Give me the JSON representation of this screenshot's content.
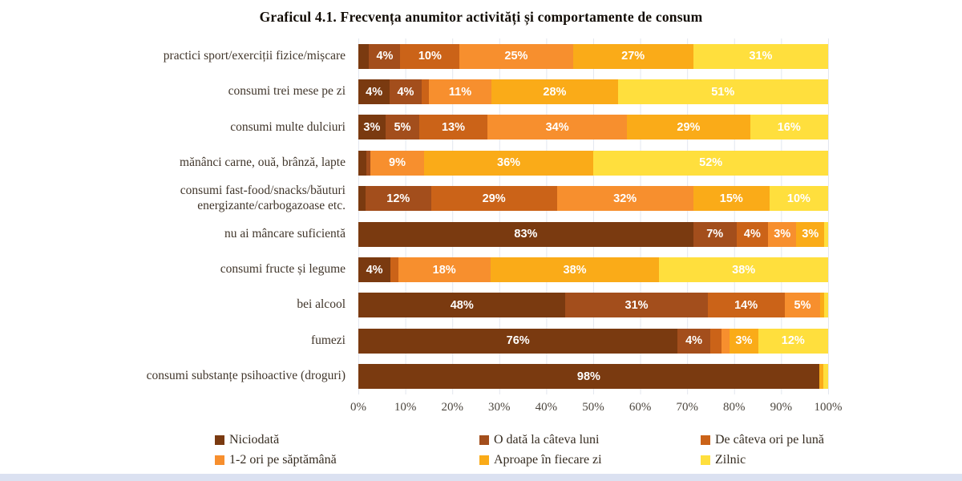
{
  "title": "Graficul 4.1. Frecvența anumitor activități și comportamente de consum",
  "chart_data": {
    "type": "bar",
    "orientation": "horizontal",
    "stacked": true,
    "unit": "%",
    "xlim": [
      0,
      100
    ],
    "grid": true,
    "legend_position": "bottom",
    "x_ticks": [
      "0%",
      "10%",
      "20%",
      "30%",
      "40%",
      "50%",
      "60%",
      "70%",
      "80%",
      "90%",
      "100%"
    ],
    "series": [
      {
        "name": "Niciodată",
        "color": "#7a3a10"
      },
      {
        "name": "O dată la câteva luni",
        "color": "#a34e1c"
      },
      {
        "name": "De câteva ori pe lună",
        "color": "#cb6318"
      },
      {
        "name": "1-2 ori pe săptămână",
        "color": "#f78f2e"
      },
      {
        "name": "Aproape în fiecare zi",
        "color": "#faab18"
      },
      {
        "name": "Zilnic",
        "color": "#ffdf3d"
      }
    ],
    "categories": [
      "practici sport/exerciții fizice/mișcare",
      "consumi trei mese pe zi",
      "consumi multe dulciuri",
      "mănânci carne, ouă, brânză, lapte",
      "consumi fast-food/snacks/băuturi energizante/carbogazoase etc.",
      "nu ai mâncare suficientă",
      "consumi fructe și legume",
      "bei alcool",
      "fumezi",
      "consumi substanțe psihoactive (droguri)"
    ],
    "rows": [
      {
        "category": "practici sport/exerciții fizice/mișcare",
        "values": [
          3,
          4,
          10,
          25,
          27,
          31
        ],
        "labels": [
          "",
          "4%",
          "10%",
          "25%",
          "27%",
          "31%"
        ]
      },
      {
        "category": "consumi trei mese pe zi",
        "values": [
          4,
          4,
          2,
          11,
          28,
          51
        ],
        "labels": [
          "4%",
          "4%",
          "",
          "11%",
          "28%",
          "51%"
        ]
      },
      {
        "category": "consumi multe dulciuri",
        "values": [
          3,
          5,
          13,
          34,
          29,
          16
        ],
        "labels": [
          "3%",
          "5%",
          "13%",
          "34%",
          "29%",
          "16%"
        ]
      },
      {
        "category": "mănânci carne, ouă, brânză, lapte",
        "values": [
          2,
          1,
          0,
          9,
          36,
          52
        ],
        "labels": [
          "",
          "",
          "",
          "9%",
          "36%",
          "52%"
        ]
      },
      {
        "category": "consumi fast-food/snacks/băuturi energizante/carbogazoase etc.",
        "values": [
          2,
          12,
          29,
          32,
          15,
          10
        ],
        "labels": [
          "",
          "12%",
          "29%",
          "32%",
          "15%",
          "10%"
        ]
      },
      {
        "category": "nu ai mâncare suficientă",
        "values": [
          83,
          7,
          4,
          3,
          3,
          1
        ],
        "labels": [
          "83%",
          "7%",
          "4%",
          "3%",
          "3%",
          ""
        ]
      },
      {
        "category": "consumi fructe și legume",
        "values": [
          4,
          0,
          2,
          18,
          38,
          38
        ],
        "labels": [
          "4%",
          "",
          "",
          "18%",
          "38%",
          "38%"
        ]
      },
      {
        "category": "bei alcool",
        "values": [
          48,
          31,
          14,
          5,
          1,
          1
        ],
        "labels": [
          "48%",
          "31%",
          "14%",
          "5%",
          "",
          ""
        ]
      },
      {
        "category": "fumezi",
        "values": [
          76,
          4,
          3,
          2,
          3,
          12
        ],
        "labels": [
          "76%",
          "4%",
          "",
          "",
          "3%",
          "12%"
        ]
      },
      {
        "category": "consumi substanțe psihoactive (droguri)",
        "values": [
          98,
          0,
          0,
          0,
          1,
          1
        ],
        "labels": [
          "98%",
          "",
          "",
          "",
          "",
          ""
        ]
      }
    ]
  }
}
